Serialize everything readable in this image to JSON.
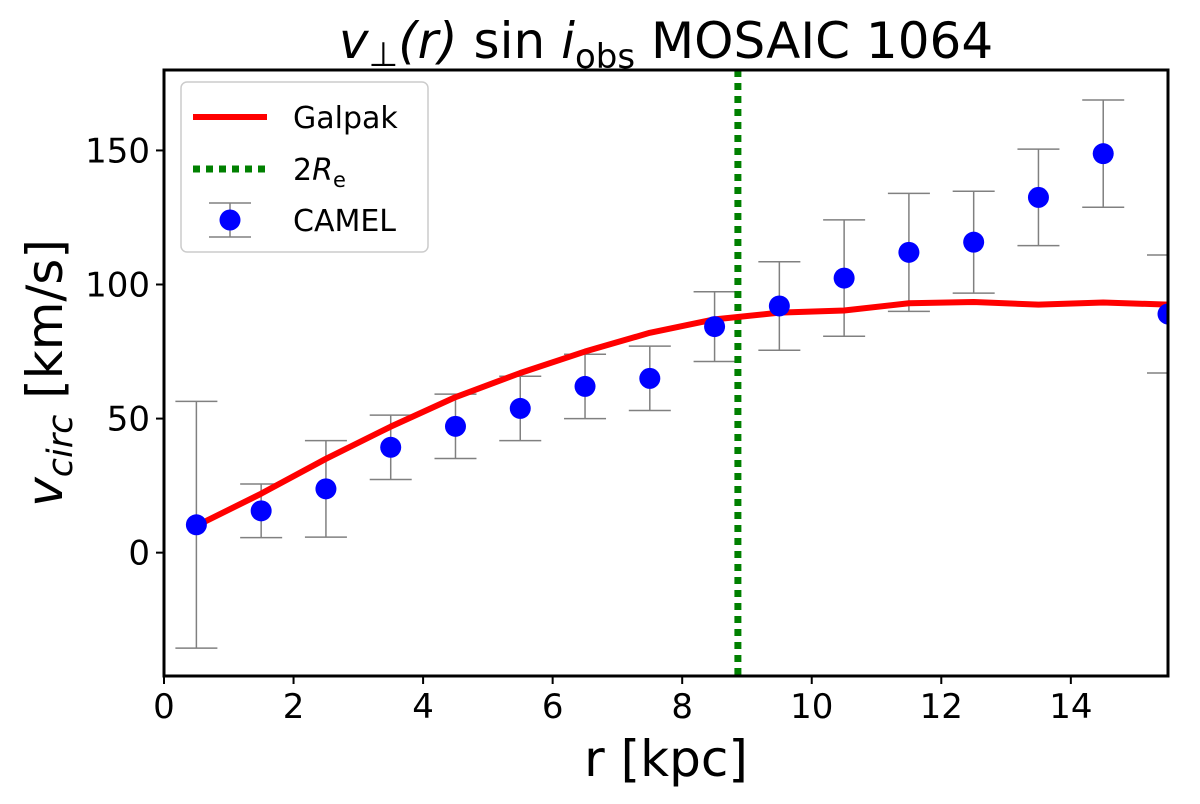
{
  "chart_data": {
    "type": "line",
    "title": "v⊥(r) sin i_obs MOSAIC 1064",
    "title_parts": {
      "v": "v",
      "perp": "⊥",
      "r": "(r)",
      "sin": "sin",
      "i": "i",
      "obs": "obs",
      "rest": "MOSAIC 1064"
    },
    "xlabel": "r [kpc]",
    "ylabel_parts": {
      "v": "v",
      "sub": "circ",
      "unit": "[km/s]"
    },
    "ylabel": "v_circ [km/s]",
    "xlim": [
      0,
      15.5
    ],
    "ylim": [
      -46,
      180
    ],
    "xticks": [
      0,
      2,
      4,
      6,
      8,
      10,
      12,
      14
    ],
    "yticks": [
      0,
      50,
      100,
      150
    ],
    "grid": false,
    "legend_position": "top-left",
    "series": [
      {
        "name": "Galpak",
        "kind": "line",
        "color": "#ff0000",
        "x": [
          0.5,
          1.5,
          2.5,
          3.5,
          4.5,
          5.5,
          6.5,
          7.5,
          8.5,
          9.5,
          10.5,
          11.5,
          12.5,
          13.5,
          14.5,
          15.5
        ],
        "y": [
          10,
          22,
          35,
          47,
          58,
          67,
          75,
          82,
          87,
          89.5,
          90.3,
          93,
          93.5,
          92.5,
          93.3,
          92.5
        ]
      },
      {
        "name": "2R_e",
        "legend_parts": {
          "pre": "2",
          "R": "R",
          "sub": "e"
        },
        "kind": "vline",
        "color": "#008000",
        "x": 8.86
      },
      {
        "name": "CAMEL",
        "kind": "errorbar",
        "color": "#0000ff",
        "error_color": "#808080",
        "x": [
          0.5,
          1.5,
          2.5,
          3.5,
          4.5,
          5.5,
          6.5,
          7.5,
          8.5,
          9.5,
          10.5,
          11.5,
          12.5,
          13.5,
          14.5,
          15.5
        ],
        "y": [
          10.4,
          15.6,
          23.8,
          39.3,
          47.1,
          53.8,
          62,
          65,
          84.3,
          92,
          102.4,
          112,
          115.8,
          132.5,
          148.8,
          89
        ],
        "yerr": [
          46,
          10,
          18,
          12,
          12,
          12,
          12,
          12,
          13,
          16.5,
          21.7,
          22,
          19,
          18,
          20,
          22
        ]
      }
    ]
  }
}
